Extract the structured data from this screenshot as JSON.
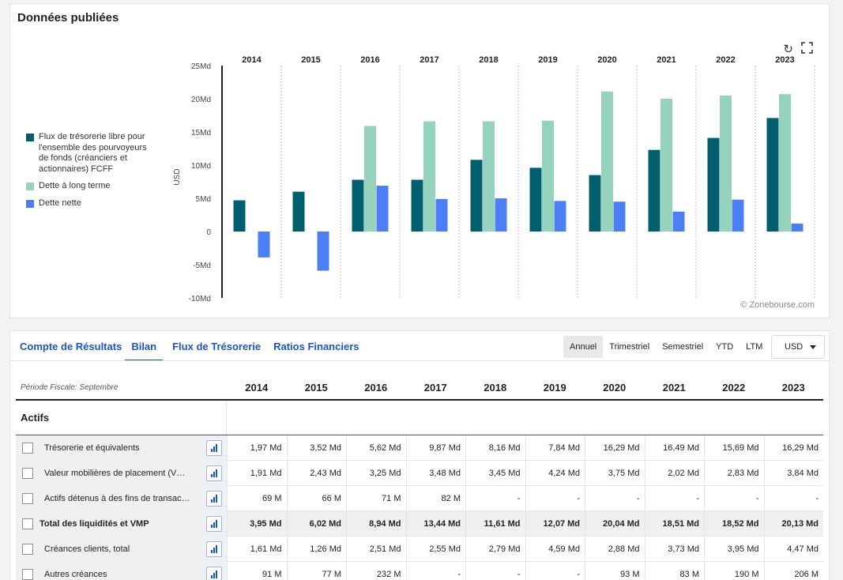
{
  "chart_card": {
    "title": "Données publiées",
    "watermark": "© Zonebourse.com"
  },
  "chart_data": {
    "type": "bar",
    "categories": [
      "2014",
      "2015",
      "2016",
      "2017",
      "2018",
      "2019",
      "2020",
      "2021",
      "2022",
      "2023"
    ],
    "series": [
      {
        "name": "Flux de trésorerie libre pour l'ensemble des pourvoyeurs de fonds (créanciers et actionnaires) FCFF",
        "color": "#005f6e",
        "values": [
          4.7,
          6.0,
          7.8,
          7.8,
          10.8,
          9.6,
          8.5,
          12.3,
          14.1,
          17.1
        ]
      },
      {
        "name": "Dette à long terme",
        "color": "#95d3bd",
        "values": [
          null,
          null,
          15.9,
          16.6,
          16.6,
          16.7,
          21.1,
          20.0,
          20.5,
          20.7
        ]
      },
      {
        "name": "Dette nette",
        "color": "#4c7ef5",
        "values": [
          -3.9,
          -5.9,
          6.9,
          4.9,
          5.0,
          4.6,
          4.5,
          3.0,
          4.8,
          1.2
        ]
      }
    ],
    "ylabel": "USD",
    "ylim": [
      -10,
      25
    ],
    "yticks": [
      -10,
      -5,
      0,
      5,
      10,
      15,
      20,
      25
    ],
    "ytick_labels": [
      "-10Md",
      "-5Md",
      "0",
      "5Md",
      "10Md",
      "15Md",
      "20Md",
      "25Md"
    ],
    "legend": "left",
    "grid": "vertical-dotted"
  },
  "icons": {
    "reset": "refresh-icon",
    "fullscreen": "fullscreen-icon"
  },
  "tabs": [
    "Compte de Résultats",
    "Bilan",
    "Flux de Trésorerie",
    "Ratios Financiers"
  ],
  "active_tab": "Bilan",
  "periods": [
    "Annuel",
    "Trimestriel",
    "Semestriel",
    "YTD",
    "LTM"
  ],
  "active_period": "Annuel",
  "currency": "USD",
  "table": {
    "fiscal_label": "Période Fiscale: Septembre",
    "years": [
      "2014",
      "2015",
      "2016",
      "2017",
      "2018",
      "2019",
      "2020",
      "2021",
      "2022",
      "2023"
    ],
    "section": "Actifs",
    "rows": [
      {
        "label": "Trésorerie et équivalents",
        "total": false,
        "values": [
          "1,97 Md",
          "3,52 Md",
          "5,62 Md",
          "9,87 Md",
          "8,16 Md",
          "7,84 Md",
          "16,29 Md",
          "16,49 Md",
          "15,69 Md",
          "16,29 Md"
        ]
      },
      {
        "label": "Valeur mobilières de placement (V…",
        "total": false,
        "values": [
          "1,91 Md",
          "2,43 Md",
          "3,25 Md",
          "3,48 Md",
          "3,45 Md",
          "4,24 Md",
          "3,75 Md",
          "2,02 Md",
          "2,83 Md",
          "3,84 Md"
        ]
      },
      {
        "label": "Actifs détenus à des fins de transac…",
        "total": false,
        "values": [
          "69 M",
          "66 M",
          "71 M",
          "82 M",
          "-",
          "-",
          "-",
          "-",
          "-",
          "-"
        ]
      },
      {
        "label": "Total des liquidités et VMP",
        "total": true,
        "values": [
          "3,95 Md",
          "6,02 Md",
          "8,94 Md",
          "13,44 Md",
          "11,61 Md",
          "12,07 Md",
          "20,04 Md",
          "18,51 Md",
          "18,52 Md",
          "20,13 Md"
        ]
      },
      {
        "label": "Créances clients, total",
        "total": false,
        "values": [
          "1,61 Md",
          "1,26 Md",
          "2,51 Md",
          "2,55 Md",
          "2,79 Md",
          "4,59 Md",
          "2,88 Md",
          "3,73 Md",
          "3,95 Md",
          "4,47 Md"
        ]
      },
      {
        "label": "Autres créances",
        "total": false,
        "values": [
          "91 M",
          "77 M",
          "232 M",
          "-",
          "-",
          "-",
          "93 M",
          "83 M",
          "190 M",
          "206 M"
        ]
      }
    ]
  }
}
